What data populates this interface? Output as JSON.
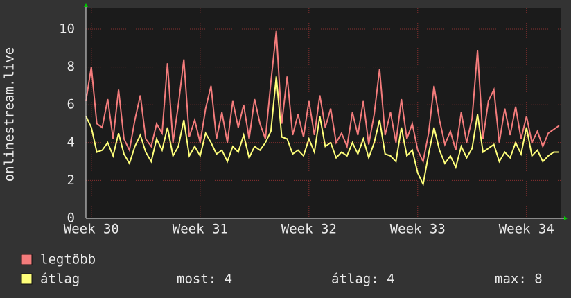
{
  "chart_data": {
    "type": "line",
    "ylabel": "onlinestream.live",
    "x": [
      29.95,
      30.0,
      30.05,
      30.1,
      30.15,
      30.2,
      30.25,
      30.3,
      30.35,
      30.4,
      30.45,
      30.5,
      30.55,
      30.6,
      30.65,
      30.7,
      30.75,
      30.8,
      30.85,
      30.9,
      30.95,
      31.0,
      31.05,
      31.1,
      31.15,
      31.2,
      31.25,
      31.3,
      31.35,
      31.4,
      31.45,
      31.5,
      31.55,
      31.6,
      31.65,
      31.7,
      31.75,
      31.8,
      31.85,
      31.9,
      31.95,
      32.0,
      32.05,
      32.1,
      32.15,
      32.2,
      32.25,
      32.3,
      32.35,
      32.4,
      32.45,
      32.5,
      32.55,
      32.6,
      32.65,
      32.7,
      32.75,
      32.8,
      32.85,
      32.9,
      32.95,
      33.0,
      33.05,
      33.1,
      33.15,
      33.2,
      33.25,
      33.3,
      33.35,
      33.4,
      33.45,
      33.5,
      33.55,
      33.6,
      33.65,
      33.7,
      33.75,
      33.8,
      33.85,
      33.9,
      33.95,
      34.0,
      34.05,
      34.1,
      34.15,
      34.2,
      34.25,
      34.3
    ],
    "series": [
      {
        "name": "legtöbb",
        "color": "#f47c7c",
        "values": [
          6.2,
          8.0,
          5.0,
          4.8,
          6.3,
          4.2,
          6.8,
          4.2,
          3.6,
          5.2,
          6.5,
          4.2,
          3.8,
          5.0,
          4.5,
          8.2,
          4.0,
          6.0,
          8.4,
          4.3,
          5.2,
          4.0,
          5.8,
          7.0,
          4.2,
          5.6,
          4.0,
          6.2,
          4.8,
          6.0,
          4.2,
          6.3,
          5.0,
          4.2,
          7.2,
          9.9,
          5.0,
          7.5,
          4.4,
          5.5,
          4.3,
          6.2,
          4.4,
          6.5,
          4.8,
          5.8,
          4.0,
          4.5,
          3.8,
          5.6,
          4.4,
          6.2,
          3.9,
          5.5,
          7.9,
          4.4,
          5.6,
          4.0,
          6.3,
          4.2,
          5.0,
          3.6,
          3.0,
          4.5,
          7.0,
          5.2,
          3.9,
          4.6,
          3.6,
          5.6,
          4.0,
          5.3,
          8.9,
          4.2,
          6.2,
          6.8,
          4.0,
          5.8,
          4.4,
          5.9,
          4.2,
          5.4,
          4.0,
          4.6,
          3.8,
          4.5,
          4.7,
          4.9
        ]
      },
      {
        "name": "átlag",
        "color": "#ffff7a",
        "values": [
          5.4,
          4.8,
          3.5,
          3.6,
          4.0,
          3.3,
          4.5,
          3.4,
          2.9,
          3.8,
          4.4,
          3.5,
          3.0,
          4.2,
          3.6,
          4.8,
          3.3,
          3.8,
          5.2,
          3.3,
          3.8,
          3.3,
          4.5,
          4.0,
          3.4,
          3.6,
          3.0,
          3.8,
          3.5,
          4.4,
          3.2,
          3.8,
          3.6,
          4.0,
          4.6,
          7.5,
          4.3,
          4.2,
          3.4,
          3.6,
          3.3,
          4.2,
          3.5,
          5.4,
          3.8,
          4.0,
          3.2,
          3.5,
          3.3,
          4.0,
          3.4,
          4.2,
          3.2,
          4.0,
          5.2,
          3.4,
          3.3,
          3.0,
          4.8,
          3.3,
          3.6,
          2.4,
          1.8,
          3.4,
          4.8,
          3.6,
          2.9,
          3.3,
          2.7,
          3.8,
          3.2,
          3.7,
          5.5,
          3.5,
          3.7,
          3.9,
          3.0,
          3.5,
          3.2,
          4.0,
          3.4,
          4.8,
          3.3,
          3.6,
          3.0,
          3.3,
          3.5,
          3.5
        ]
      }
    ],
    "xlim": [
      29.95,
      34.32
    ],
    "xticks": [
      {
        "value": 30,
        "label": "Week 30"
      },
      {
        "value": 31,
        "label": "Week 31"
      },
      {
        "value": 32,
        "label": "Week 32"
      },
      {
        "value": 33,
        "label": "Week 33"
      },
      {
        "value": 34,
        "label": "Week 34"
      }
    ],
    "ylim": [
      0,
      11.1
    ],
    "yticks": [
      0,
      2,
      4,
      6,
      8,
      10
    ],
    "grid": true,
    "stats": [
      "most: 4",
      "átlag: 4",
      "max: 8"
    ]
  }
}
